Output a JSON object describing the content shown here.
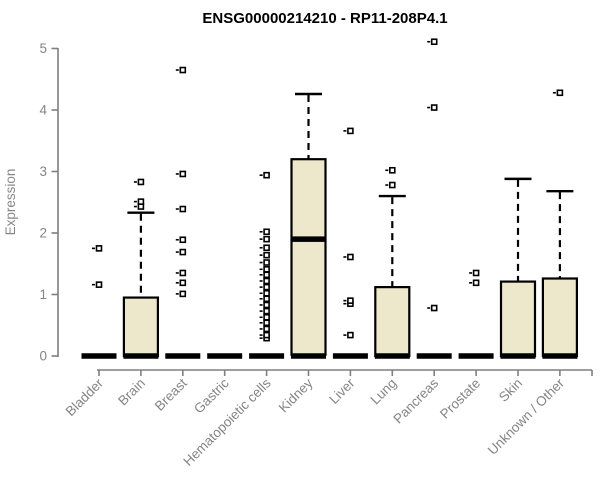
{
  "chart_data": {
    "type": "boxplot",
    "title": "ENSG00000214210 - RP11-208P4.1",
    "ylabel": "Expression",
    "xlabel": "",
    "ylim": [
      0,
      5
    ],
    "yticks": [
      0,
      1,
      2,
      3,
      4,
      5
    ],
    "grid": false,
    "legend": "none",
    "colors": {
      "box_fill": "#ede7cc",
      "box_border": "#000000",
      "median": "#000000",
      "axis": "#7f7f7f",
      "labels": "#858585",
      "title": "#000000"
    },
    "categories": [
      "Bladder",
      "Brain",
      "Breast",
      "Gastric",
      "Hematopoietic cells",
      "Kidney",
      "Liver",
      "Lung",
      "Pancreas",
      "Prostate",
      "Skin",
      "Unknown / Other"
    ],
    "series": [
      {
        "label": "Bladder",
        "q1": 0,
        "median": 0,
        "q3": 0,
        "whisker_low": 0,
        "whisker_high": 0,
        "outliers": [
          1.16,
          1.75
        ]
      },
      {
        "label": "Brain",
        "q1": 0,
        "median": 0,
        "q3": 0.95,
        "whisker_low": 0,
        "whisker_high": 2.33,
        "outliers": [
          2.43,
          2.51,
          2.83
        ]
      },
      {
        "label": "Breast",
        "q1": 0,
        "median": 0,
        "q3": 0,
        "whisker_low": 0,
        "whisker_high": 0,
        "outliers": [
          1.01,
          1.19,
          1.35,
          1.69,
          1.89,
          2.39,
          2.96,
          4.65
        ]
      },
      {
        "label": "Gastric",
        "q1": 0,
        "median": 0,
        "q3": 0,
        "whisker_low": 0,
        "whisker_high": 0,
        "outliers": []
      },
      {
        "label": "Hematopoietic cells",
        "q1": 0,
        "median": 0,
        "q3": 0,
        "whisker_low": 0,
        "whisker_high": 0,
        "outliers": [
          0.29,
          0.34,
          0.44,
          0.54,
          0.63,
          0.73,
          0.83,
          0.93,
          1.02,
          1.12,
          1.22,
          1.32,
          1.41,
          1.52,
          1.64,
          1.76,
          1.9,
          2.02,
          2.94
        ]
      },
      {
        "label": "Kidney",
        "q1": 0.02,
        "median": 1.9,
        "q3": 3.2,
        "whisker_low": 0,
        "whisker_high": 4.26,
        "outliers": []
      },
      {
        "label": "Liver",
        "q1": 0,
        "median": 0,
        "q3": 0,
        "whisker_low": 0,
        "whisker_high": 0,
        "outliers": [
          0.34,
          0.85,
          0.9,
          1.61,
          3.66
        ]
      },
      {
        "label": "Lung",
        "q1": 0,
        "median": 0,
        "q3": 1.12,
        "whisker_low": 0,
        "whisker_high": 2.6,
        "outliers": [
          2.78,
          3.02
        ]
      },
      {
        "label": "Pancreas",
        "q1": 0,
        "median": 0,
        "q3": 0,
        "whisker_low": 0,
        "whisker_high": 0,
        "outliers": [
          0.78,
          4.04,
          5.11
        ]
      },
      {
        "label": "Prostate",
        "q1": 0,
        "median": 0,
        "q3": 0,
        "whisker_low": 0,
        "whisker_high": 0,
        "outliers": [
          1.19,
          1.35
        ]
      },
      {
        "label": "Skin",
        "q1": 0,
        "median": 0,
        "q3": 1.21,
        "whisker_low": 0,
        "whisker_high": 2.88,
        "outliers": []
      },
      {
        "label": "Unknown / Other",
        "q1": 0,
        "median": 0,
        "q3": 1.26,
        "whisker_low": 0,
        "whisker_high": 2.68,
        "outliers": [
          4.28
        ]
      }
    ]
  }
}
